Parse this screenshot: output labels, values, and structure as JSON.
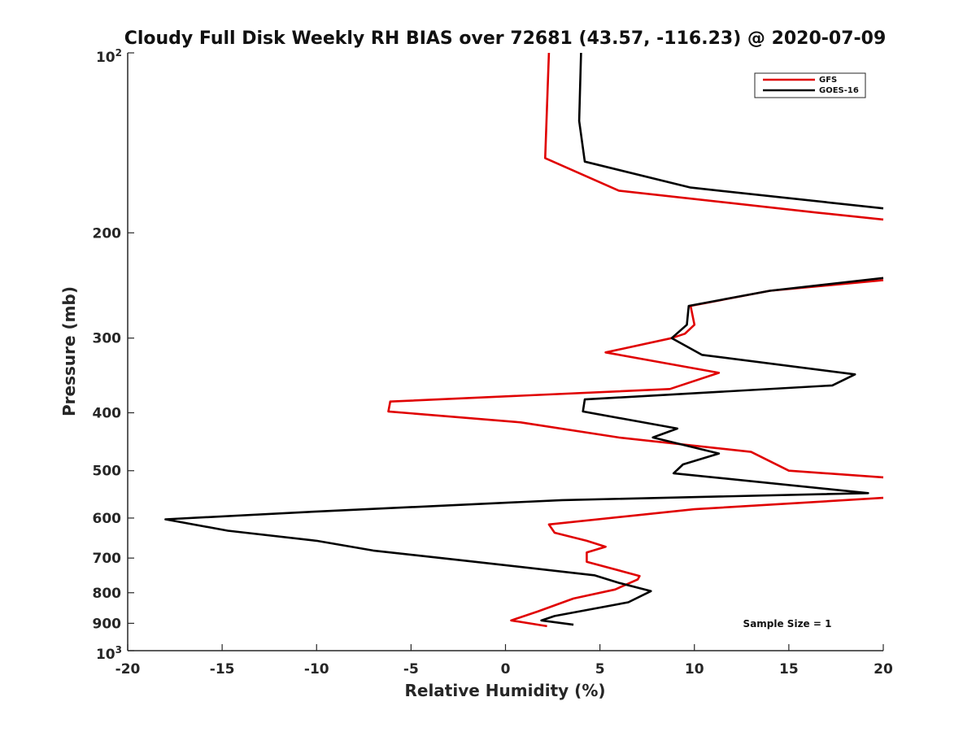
{
  "chart_data": {
    "type": "line",
    "title": "Cloudy Full Disk Weekly RH BIAS over 72681 (43.57, -116.23) @ 2020-07-09",
    "xlabel": "Relative Humidity (%)",
    "ylabel": "Pressure (mb)",
    "xlim": [
      -20,
      20
    ],
    "ylim": [
      100,
      1000
    ],
    "y_scale": "log",
    "y_reversed": true,
    "grid": false,
    "legend_position": "top-right",
    "x_ticks": [
      -20,
      -15,
      -10,
      -5,
      0,
      5,
      10,
      15,
      20
    ],
    "x_tick_labels": [
      "-20",
      "-15",
      "-10",
      "-5",
      "0",
      "5",
      "10",
      "15",
      "20"
    ],
    "y_ticks": [
      200,
      300,
      400,
      500,
      600,
      700,
      800,
      900
    ],
    "y_tick_labels": [
      "200",
      "300",
      "400",
      "500",
      "600",
      "700",
      "800",
      "900"
    ],
    "y_tick_top": {
      "base": "10",
      "exp": "2",
      "value": 100
    },
    "y_tick_bottom": {
      "base": "10",
      "exp": "3",
      "value": 1000
    },
    "series": [
      {
        "name": "GFS",
        "color": "#e00000",
        "points": [
          [
            2.3,
            100
          ],
          [
            2.1,
            150
          ],
          [
            6.0,
            170
          ],
          [
            16.5,
            185
          ],
          [
            20.0,
            190
          ],
          [
            null,
            null
          ],
          [
            20.0,
            240
          ],
          [
            14.0,
            250
          ],
          [
            9.8,
            265
          ],
          [
            10.0,
            285
          ],
          [
            9.5,
            295
          ],
          [
            8.8,
            300
          ],
          [
            5.3,
            317
          ],
          [
            11.3,
            343
          ],
          [
            8.7,
            365
          ],
          [
            -6.1,
            383
          ],
          [
            -6.2,
            398
          ],
          [
            0.8,
            415
          ],
          [
            6.0,
            440
          ],
          [
            13.0,
            465
          ],
          [
            15.0,
            500
          ],
          [
            20.0,
            513
          ],
          [
            null,
            null
          ],
          [
            20.0,
            555
          ],
          [
            10.0,
            580
          ],
          [
            2.3,
            615
          ],
          [
            2.6,
            635
          ],
          [
            4.3,
            655
          ],
          [
            5.3,
            670
          ],
          [
            4.3,
            685
          ],
          [
            4.3,
            710
          ],
          [
            7.1,
            750
          ],
          [
            7.0,
            760
          ],
          [
            5.8,
            790
          ],
          [
            3.6,
            818
          ],
          [
            1.7,
            860
          ],
          [
            0.3,
            890
          ],
          [
            2.2,
            910
          ]
        ]
      },
      {
        "name": "GOES-16",
        "color": "#000000",
        "points": [
          [
            4.0,
            100
          ],
          [
            3.9,
            130
          ],
          [
            4.2,
            152
          ],
          [
            9.8,
            168
          ],
          [
            20.0,
            182
          ],
          [
            null,
            null
          ],
          [
            20.0,
            238
          ],
          [
            14.0,
            250
          ],
          [
            9.7,
            265
          ],
          [
            9.6,
            285
          ],
          [
            8.8,
            300
          ],
          [
            10.4,
            320
          ],
          [
            18.5,
            345
          ],
          [
            17.3,
            360
          ],
          [
            4.2,
            380
          ],
          [
            4.1,
            398
          ],
          [
            9.1,
            425
          ],
          [
            7.8,
            440
          ],
          [
            11.3,
            468
          ],
          [
            9.4,
            488
          ],
          [
            8.9,
            505
          ],
          [
            19.2,
            545
          ],
          [
            3.0,
            560
          ],
          [
            -10.0,
            585
          ],
          [
            -18.0,
            603
          ],
          [
            -14.7,
            630
          ],
          [
            -10.0,
            655
          ],
          [
            -7.0,
            680
          ],
          [
            -2.5,
            705
          ],
          [
            4.7,
            748
          ],
          [
            6.0,
            770
          ],
          [
            7.7,
            795
          ],
          [
            6.5,
            830
          ],
          [
            2.6,
            875
          ],
          [
            1.9,
            890
          ],
          [
            3.6,
            905
          ]
        ]
      }
    ],
    "annotations": [
      "Sample Size = 1"
    ]
  }
}
